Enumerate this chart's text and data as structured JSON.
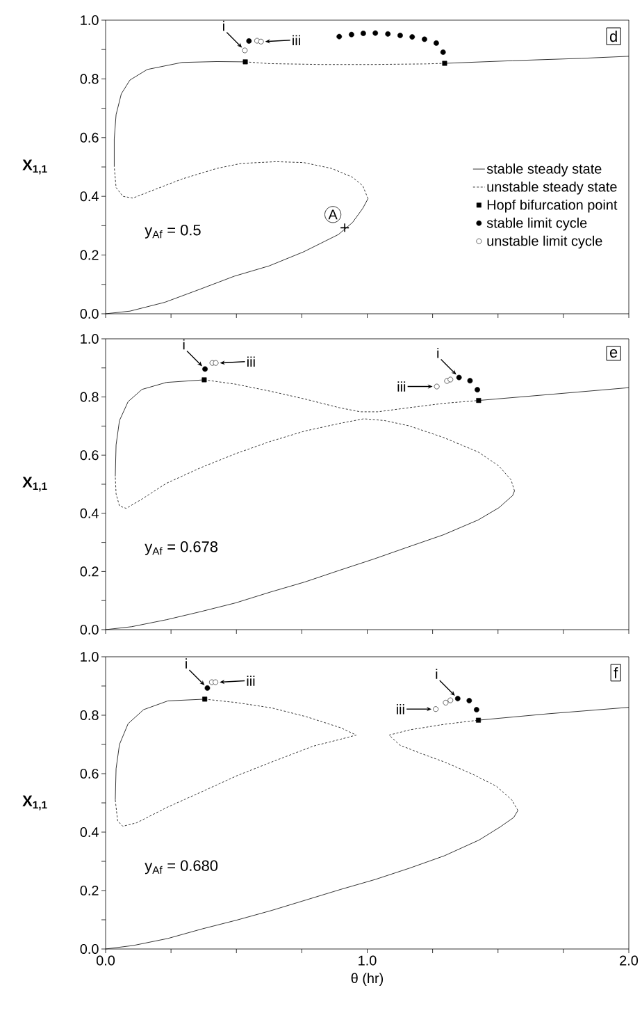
{
  "chart_data": [
    {
      "type": "line",
      "ylabel": "X$_{1,1}$",
      "xlim": [
        0,
        2
      ],
      "ylim": [
        0,
        1
      ],
      "tick_labels": "y",
      "legend": "right",
      "xticks": [
        {
          "value": 0,
          "label": null
        },
        {
          "value": 0.25,
          "label": null
        },
        {
          "value": 0.5,
          "label": null
        },
        {
          "value": 0.75,
          "label": null
        },
        {
          "value": 1,
          "label": null
        },
        {
          "value": 1.25,
          "label": null
        },
        {
          "value": 1.5,
          "label": null
        },
        {
          "value": 1.75,
          "label": null
        },
        {
          "value": 2,
          "label": null
        }
      ],
      "yticks": [
        {
          "value": 0,
          "label": "0.0"
        },
        {
          "value": 0.1,
          "label": null
        },
        {
          "value": 0.2,
          "label": "0.2"
        },
        {
          "value": 0.3,
          "label": null
        },
        {
          "value": 0.4,
          "label": "0.4"
        },
        {
          "value": 0.5,
          "label": null
        },
        {
          "value": 0.6,
          "label": "0.6"
        },
        {
          "value": 0.7,
          "label": null
        },
        {
          "value": 0.8,
          "label": "0.8"
        },
        {
          "value": 0.9,
          "label": null
        },
        {
          "value": 1,
          "label": "1.0"
        }
      ],
      "annotations": [
        "d",
        "y$_{Af}$ = 0.5",
        {
          "text": "A",
          "x": 0.914,
          "y": 0.293
        },
        {
          "text": "i",
          "x": 0.532,
          "y": 0.897
        },
        {
          "text": "iii",
          "x": 0.594,
          "y": 0.927
        }
      ],
      "series": [
        {
          "name": "stable steady state",
          "line_style": "solid",
          "color": "#000000",
          "x": [
            0,
            0.093,
            0.226,
            0.359,
            0.492,
            0.625,
            0.757,
            0.89,
            0.944,
            0.983,
            1.003
          ],
          "values": [
            0,
            0.009,
            0.039,
            0.083,
            0.128,
            0.163,
            0.211,
            0.27,
            0.311,
            0.359,
            0.392
          ]
        },
        {
          "name": "unstable steady state",
          "line_style": "dashed",
          "color": "#000000",
          "x": [
            1.003,
            0.983,
            0.944,
            0.864,
            0.757,
            0.651,
            0.518,
            0.425,
            0.292,
            0.173,
            0.104,
            0.066,
            0.04,
            0.033
          ],
          "values": [
            0.392,
            0.436,
            0.465,
            0.495,
            0.515,
            0.518,
            0.512,
            0.495,
            0.459,
            0.418,
            0.394,
            0.4,
            0.43,
            0.501
          ]
        },
        {
          "name": "Hopf bifurcation point",
          "type": "scatter",
          "marker": "square",
          "color": "#000000",
          "x": [
            0.534,
            1.296
          ],
          "values": [
            0.858,
            0.853
          ]
        },
        {
          "name": "stable limit cycle",
          "type": "scatter",
          "marker": "circle",
          "color": "#000000",
          "x": [
            0.548,
            0.893,
            0.94,
            0.985,
            1.031,
            1.079,
            1.126,
            1.172,
            1.219,
            1.264,
            1.29
          ],
          "values": [
            0.929,
            0.944,
            0.951,
            0.955,
            0.956,
            0.953,
            0.948,
            0.943,
            0.935,
            0.922,
            0.891
          ]
        },
        {
          "name": "unstable limit cycle",
          "type": "scatter",
          "marker": "circle",
          "color": "#ffffff",
          "x": [
            0.532,
            0.579,
            0.594
          ],
          "values": [
            0.897,
            0.93,
            0.927
          ]
        },
        {
          "line_style": "solid",
          "color": "#000000",
          "x": [
            0.033,
            0.033,
            0.04,
            0.06,
            0.093,
            0.159,
            0.292,
            0.425,
            0.534
          ],
          "values": [
            0.501,
            0.595,
            0.678,
            0.749,
            0.796,
            0.832,
            0.856,
            0.859,
            0.858
          ]
        },
        {
          "line_style": "dashed",
          "color": "#000000",
          "x": [
            0.534,
            0.625,
            0.824,
            1.023,
            1.223,
            1.296
          ],
          "values": [
            0.858,
            0.852,
            0.849,
            0.849,
            0.851,
            0.853
          ]
        },
        {
          "line_style": "solid",
          "color": "#000000",
          "x": [
            1.296,
            1.555,
            1.821,
            2.0
          ],
          "values": [
            0.853,
            0.862,
            0.87,
            0.877
          ]
        },
        {
          "type": "scatter",
          "marker": "cross",
          "color": "#000000",
          "x": [
            0.914
          ],
          "values": [
            0.293
          ]
        }
      ]
    },
    {
      "type": "line",
      "ylabel": "X$_{1,1}$",
      "xlim": [
        0,
        2
      ],
      "ylim": [
        0,
        1
      ],
      "tick_labels": "y",
      "xticks": [
        {
          "value": 0,
          "label": null
        },
        {
          "value": 0.25,
          "label": null
        },
        {
          "value": 0.5,
          "label": null
        },
        {
          "value": 0.75,
          "label": null
        },
        {
          "value": 1,
          "label": null
        },
        {
          "value": 1.25,
          "label": null
        },
        {
          "value": 1.5,
          "label": null
        },
        {
          "value": 1.75,
          "label": null
        },
        {
          "value": 2,
          "label": null
        }
      ],
      "yticks": [
        {
          "value": 0,
          "label": "0.0"
        },
        {
          "value": 0.1,
          "label": null
        },
        {
          "value": 0.2,
          "label": "0.2"
        },
        {
          "value": 0.3,
          "label": null
        },
        {
          "value": 0.4,
          "label": "0.4"
        },
        {
          "value": 0.5,
          "label": null
        },
        {
          "value": 0.6,
          "label": "0.6"
        },
        {
          "value": 0.7,
          "label": null
        },
        {
          "value": 0.8,
          "label": "0.8"
        },
        {
          "value": 0.9,
          "label": null
        },
        {
          "value": 1,
          "label": "1.0"
        }
      ],
      "annotations": [
        "e",
        "y$_{Af}$ = 0.678",
        {
          "text": "i",
          "x": 0.38,
          "y": 0.896
        },
        {
          "text": "iii",
          "x": 0.421,
          "y": 0.917
        },
        {
          "text": "i",
          "x": 1.351,
          "y": 0.867
        },
        {
          "text": "iii",
          "x": 1.266,
          "y": 0.836
        }
      ],
      "series": [
        {
          "line_style": "solid",
          "color": "#000000",
          "x": [
            0,
            0.099,
            0.232,
            0.364,
            0.497,
            0.629,
            0.762,
            0.894,
            1.026,
            1.159,
            1.291,
            1.424,
            1.503,
            1.556,
            1.563
          ],
          "values": [
            0,
            0.01,
            0.034,
            0.062,
            0.092,
            0.129,
            0.164,
            0.204,
            0.243,
            0.285,
            0.326,
            0.377,
            0.419,
            0.461,
            0.477
          ]
        },
        {
          "line_style": "dashed",
          "color": "#000000",
          "x": [
            1.563,
            1.55,
            1.503,
            1.424,
            1.291,
            1.159,
            1.066,
            0.987,
            0.894,
            0.762,
            0.629,
            0.497,
            0.364,
            0.232,
            0.139,
            0.079,
            0.053,
            0.04,
            0.037
          ],
          "values": [
            0.477,
            0.515,
            0.563,
            0.611,
            0.661,
            0.701,
            0.719,
            0.725,
            0.709,
            0.683,
            0.647,
            0.605,
            0.557,
            0.503,
            0.449,
            0.417,
            0.425,
            0.467,
            0.527
          ]
        },
        {
          "line_style": "solid",
          "color": "#000000",
          "x": [
            0.037,
            0.04,
            0.053,
            0.086,
            0.139,
            0.232,
            0.377
          ],
          "values": [
            0.527,
            0.635,
            0.719,
            0.784,
            0.826,
            0.85,
            0.859
          ]
        },
        {
          "line_style": "dashed",
          "color": "#000000",
          "x": [
            0.377,
            0.497,
            0.629,
            0.762,
            0.894,
            0.974,
            1.04,
            1.159,
            1.291,
            1.426
          ],
          "values": [
            0.859,
            0.844,
            0.82,
            0.793,
            0.763,
            0.749,
            0.749,
            0.763,
            0.778,
            0.788
          ]
        },
        {
          "line_style": "solid",
          "color": "#000000",
          "x": [
            1.426,
            1.689,
            2.0
          ],
          "values": [
            0.788,
            0.808,
            0.832
          ]
        },
        {
          "type": "scatter",
          "marker": "square",
          "color": "#000000",
          "x": [
            0.377,
            1.426
          ],
          "values": [
            0.859,
            0.788
          ]
        },
        {
          "type": "scatter",
          "marker": "circle",
          "color": "#000000",
          "x": [
            0.38,
            1.351,
            1.393,
            1.421
          ],
          "values": [
            0.896,
            0.867,
            0.856,
            0.825
          ]
        },
        {
          "type": "scatter",
          "marker": "circle",
          "color": "#ffffff",
          "x": [
            0.408,
            0.421,
            1.266,
            1.305,
            1.318
          ],
          "values": [
            0.917,
            0.917,
            0.836,
            0.855,
            0.86
          ]
        }
      ]
    },
    {
      "type": "line",
      "ylabel": "X$_{1,1}$",
      "xlabel": "θ (hr)",
      "xlim": [
        0,
        2
      ],
      "ylim": [
        0,
        1
      ],
      "xticks": [
        {
          "value": 0,
          "label": "0.0"
        },
        {
          "value": 0.25,
          "label": null
        },
        {
          "value": 0.5,
          "label": null
        },
        {
          "value": 0.75,
          "label": null
        },
        {
          "value": 1,
          "label": "1.0"
        },
        {
          "value": 1.25,
          "label": null
        },
        {
          "value": 1.5,
          "label": null
        },
        {
          "value": 1.75,
          "label": null
        },
        {
          "value": 2,
          "label": "2.0"
        }
      ],
      "yticks": [
        {
          "value": 0,
          "label": "0.0"
        },
        {
          "value": 0.1,
          "label": null
        },
        {
          "value": 0.2,
          "label": "0.2"
        },
        {
          "value": 0.3,
          "label": null
        },
        {
          "value": 0.4,
          "label": "0.4"
        },
        {
          "value": 0.5,
          "label": null
        },
        {
          "value": 0.6,
          "label": "0.6"
        },
        {
          "value": 0.7,
          "label": null
        },
        {
          "value": 0.8,
          "label": "0.8"
        },
        {
          "value": 0.9,
          "label": null
        },
        {
          "value": 1,
          "label": "1.0"
        }
      ],
      "annotations": [
        "f",
        "y$_{Af}$ = 0.680",
        {
          "text": "i",
          "x": 0.389,
          "y": 0.893
        },
        {
          "text": "iii",
          "x": 0.42,
          "y": 0.913
        },
        {
          "text": "i",
          "x": 1.346,
          "y": 0.857
        },
        {
          "text": "iii",
          "x": 1.262,
          "y": 0.821
        }
      ],
      "series": [
        {
          "line_style": "solid",
          "color": "#000000",
          "x": [
            0,
            0.106,
            0.238,
            0.37,
            0.502,
            0.635,
            0.767,
            0.899,
            1.031,
            1.163,
            1.295,
            1.428,
            1.507,
            1.56,
            1.576
          ],
          "values": [
            0,
            0.012,
            0.036,
            0.069,
            0.099,
            0.132,
            0.168,
            0.204,
            0.238,
            0.277,
            0.319,
            0.373,
            0.417,
            0.45,
            0.474
          ]
        },
        {
          "line_style": "dashed",
          "color": "#000000",
          "x": [
            1.576,
            1.553,
            1.494,
            1.401,
            1.295,
            1.203,
            1.124,
            1.084,
            1.163,
            1.295,
            1.425
          ],
          "values": [
            0.474,
            0.51,
            0.557,
            0.599,
            0.64,
            0.67,
            0.698,
            0.732,
            0.75,
            0.769,
            0.783
          ]
        },
        {
          "line_style": "solid",
          "color": "#000000",
          "x": [
            1.425,
            1.692,
            2.0
          ],
          "values": [
            0.783,
            0.805,
            0.827
          ]
        },
        {
          "line_style": "dashed",
          "color": "#000000",
          "x": [
            0.379,
            0.502,
            0.635,
            0.767,
            0.899,
            0.958,
            0.899,
            0.793,
            0.635,
            0.502,
            0.37,
            0.238,
            0.119,
            0.066,
            0.046,
            0.037
          ],
          "values": [
            0.855,
            0.843,
            0.825,
            0.795,
            0.757,
            0.732,
            0.718,
            0.694,
            0.64,
            0.593,
            0.539,
            0.486,
            0.432,
            0.42,
            0.438,
            0.51
          ]
        },
        {
          "line_style": "solid",
          "color": "#000000",
          "x": [
            0.037,
            0.04,
            0.053,
            0.086,
            0.145,
            0.238,
            0.379
          ],
          "values": [
            0.51,
            0.617,
            0.7,
            0.771,
            0.819,
            0.849,
            0.855
          ]
        },
        {
          "type": "scatter",
          "marker": "square",
          "color": "#000000",
          "x": [
            0.379,
            1.425
          ],
          "values": [
            0.855,
            0.783
          ]
        },
        {
          "type": "scatter",
          "marker": "circle",
          "color": "#000000",
          "x": [
            0.389,
            1.346,
            1.39,
            1.418
          ],
          "values": [
            0.893,
            0.857,
            0.85,
            0.819
          ]
        },
        {
          "type": "scatter",
          "marker": "circle",
          "color": "#ffffff",
          "x": [
            0.406,
            0.42,
            1.262,
            1.3,
            1.318
          ],
          "values": [
            0.913,
            0.913,
            0.821,
            0.843,
            0.851
          ]
        }
      ]
    }
  ]
}
